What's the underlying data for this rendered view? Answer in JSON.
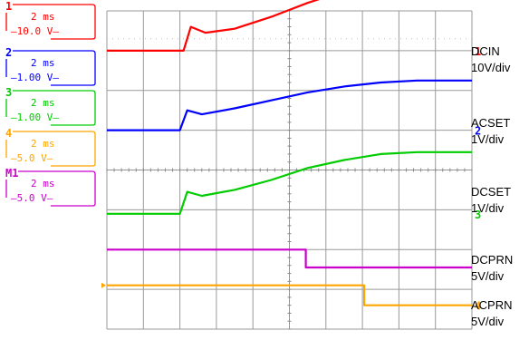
{
  "channels": [
    {
      "num": "1",
      "time": "2 ms",
      "volt": "10.0 V",
      "color": "#ff0000"
    },
    {
      "num": "2",
      "time": "2 ms",
      "volt": "1.00 V",
      "color": "#0000ff"
    },
    {
      "num": "3",
      "time": "2 ms",
      "volt": "1.00 V",
      "color": "#00cc00"
    },
    {
      "num": "4",
      "time": "2 ms",
      "volt": "5.0 V",
      "color": "#ffa500"
    },
    {
      "num": "M1",
      "time": "2 ms",
      "volt": "5.0 V",
      "color": "#cc00cc"
    }
  ],
  "labels": [
    {
      "name": "DCIN",
      "scale": "10V/div"
    },
    {
      "name": "ACSET",
      "scale": "1V/div"
    },
    {
      "name": "DCSET",
      "scale": "1V/div"
    },
    {
      "name": "DCPRN",
      "scale": "5V/div"
    },
    {
      "name": "ACPRN",
      "scale": "5V/div"
    }
  ],
  "markers": [
    "1",
    "2",
    "3",
    "4"
  ],
  "chart_data": {
    "type": "line",
    "grid": true,
    "x_divisions": 10,
    "y_divisions": 8,
    "time_per_div": "2 ms",
    "series": [
      {
        "name": "DCIN",
        "color": "#ff0000",
        "x": [
          0,
          2.1,
          2.3,
          2.7,
          3.5,
          4.5,
          5.5,
          6.5,
          7.5,
          8.5,
          9.0,
          10.0
        ],
        "y": [
          7.0,
          7.0,
          7.6,
          7.45,
          7.55,
          7.85,
          8.2,
          8.5,
          8.7,
          8.85,
          8.85,
          8.85
        ]
      },
      {
        "name": "ACSET",
        "color": "#0000ff",
        "x": [
          0,
          2.0,
          2.2,
          2.6,
          3.5,
          4.5,
          5.5,
          6.5,
          7.5,
          8.5,
          10.0
        ],
        "y": [
          5.0,
          5.0,
          5.5,
          5.4,
          5.55,
          5.75,
          5.95,
          6.1,
          6.2,
          6.25,
          6.25
        ]
      },
      {
        "name": "DCSET",
        "color": "#00cc00",
        "x": [
          0,
          2.0,
          2.2,
          2.6,
          3.5,
          4.5,
          5.5,
          6.5,
          7.5,
          8.5,
          10.0
        ],
        "y": [
          2.9,
          2.9,
          3.45,
          3.35,
          3.5,
          3.75,
          4.05,
          4.25,
          4.4,
          4.45,
          4.45
        ]
      },
      {
        "name": "DCPRN",
        "color": "#cc00cc",
        "x": [
          0,
          5.45,
          5.45,
          10.0
        ],
        "y": [
          2.0,
          2.0,
          1.55,
          1.55
        ]
      },
      {
        "name": "ACPRN",
        "color": "#ffa500",
        "x": [
          0,
          7.05,
          7.05,
          10.0
        ],
        "y": [
          1.1,
          1.1,
          0.6,
          0.6
        ]
      }
    ]
  }
}
